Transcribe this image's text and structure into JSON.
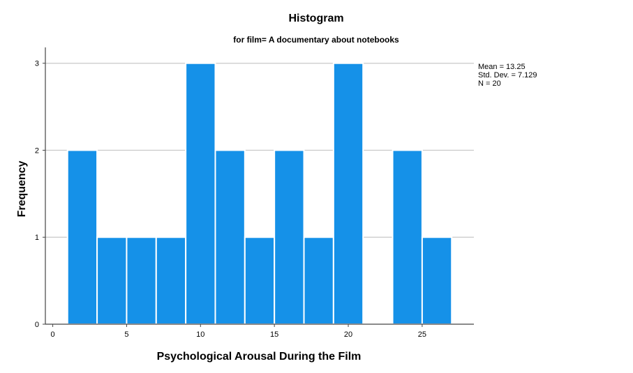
{
  "chart_data": {
    "type": "bar",
    "title": "Histogram",
    "subtitle": "for film= A documentary about notebooks",
    "xlabel": "Psychological Arousal During the Film",
    "ylabel": "Frequency",
    "bin_width": 2,
    "bins": [
      {
        "start": 1,
        "end": 3,
        "count": 2
      },
      {
        "start": 3,
        "end": 5,
        "count": 1
      },
      {
        "start": 5,
        "end": 7,
        "count": 1
      },
      {
        "start": 7,
        "end": 9,
        "count": 1
      },
      {
        "start": 9,
        "end": 11,
        "count": 3
      },
      {
        "start": 11,
        "end": 13,
        "count": 2
      },
      {
        "start": 13,
        "end": 15,
        "count": 1
      },
      {
        "start": 15,
        "end": 17,
        "count": 2
      },
      {
        "start": 17,
        "end": 19,
        "count": 1
      },
      {
        "start": 19,
        "end": 21,
        "count": 3
      },
      {
        "start": 21,
        "end": 23,
        "count": 0
      },
      {
        "start": 23,
        "end": 25,
        "count": 2
      },
      {
        "start": 25,
        "end": 27,
        "count": 1
      }
    ],
    "xlim": [
      -0.5,
      28.5
    ],
    "ylim": [
      0,
      3.15
    ],
    "xticks": [
      0,
      5,
      10,
      15,
      20,
      25
    ],
    "yticks": [
      0,
      1,
      2,
      3
    ],
    "grid": "horizontal",
    "bar_color": "#1591e8",
    "grid_color": "#c8c8c8",
    "stats": [
      "Mean = 13.25",
      "Std. Dev. = 7.129",
      "N = 20"
    ]
  }
}
